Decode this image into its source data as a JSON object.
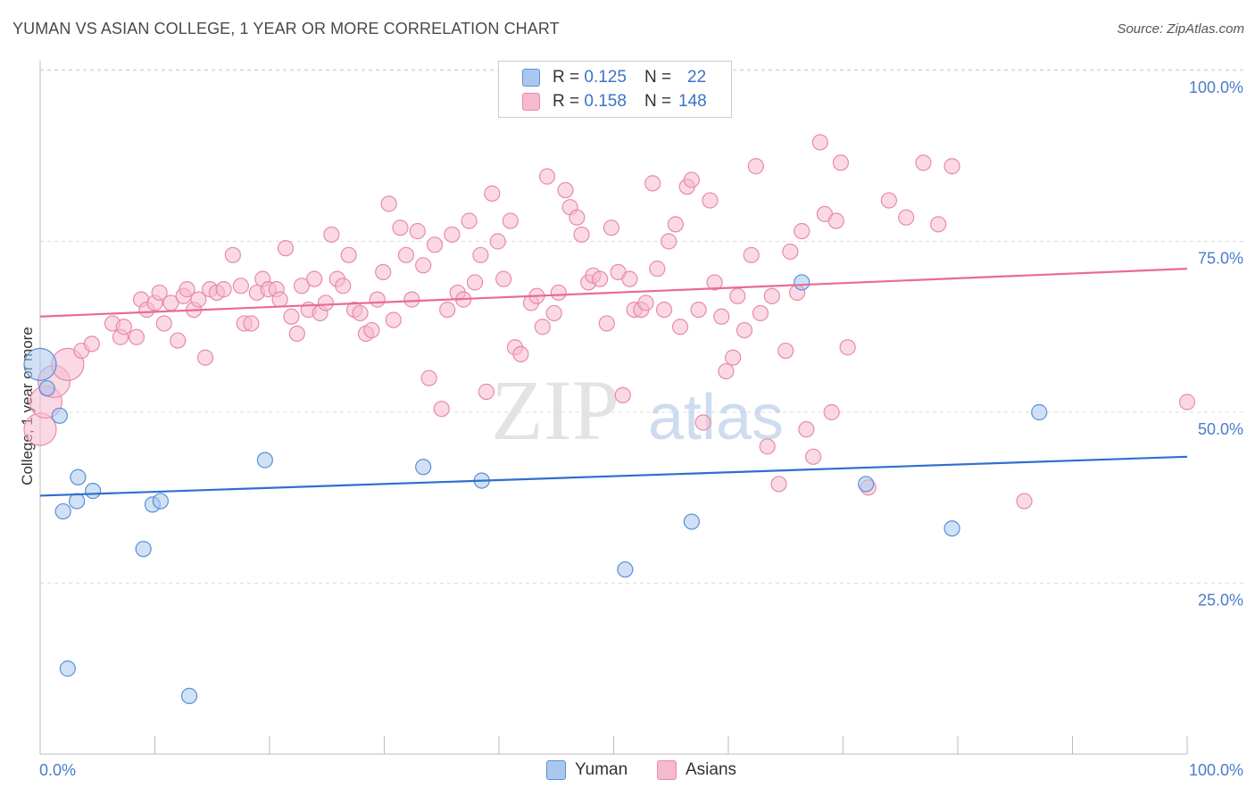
{
  "title": "YUMAN VS ASIAN COLLEGE, 1 YEAR OR MORE CORRELATION CHART",
  "source": "Source: ZipAtlas.com",
  "watermark_zip": "ZIP",
  "watermark_atlas": "atlas",
  "colors": {
    "yuman_fill": "#aac8ef",
    "yuman_stroke": "#5a8fd6",
    "yuman_line": "#2f6fcf",
    "asian_fill": "#f7b9cd",
    "asian_stroke": "#e88aaa",
    "asian_line": "#e86b97",
    "grid": "#dddddd",
    "axis_text": "#4a7cc9"
  },
  "legend": {
    "r_label": "R =",
    "n_label": "N =",
    "yuman": {
      "r": "0.125",
      "n": "22"
    },
    "asian": {
      "r": "0.158",
      "n": "148"
    }
  },
  "bottom_legend": {
    "yuman": "Yuman",
    "asian": "Asians"
  },
  "chart_data": {
    "type": "scatter",
    "ylabel": "College, 1 year or more",
    "xlim": [
      0,
      100
    ],
    "ylim": [
      0,
      105
    ],
    "x_tick_labels": [
      "0.0%",
      "100.0%"
    ],
    "y_ticks": [
      25,
      50,
      75,
      100
    ],
    "y_tick_labels": [
      "25.0%",
      "50.0%",
      "75.0%",
      "100.0%"
    ],
    "series": [
      {
        "name": "Yuman",
        "trend": {
          "y_at_0": 37.8,
          "y_at_100": 43.5
        },
        "points": [
          {
            "x": 0.0,
            "y": 57.0,
            "big": true
          },
          {
            "x": 0.6,
            "y": 53.5
          },
          {
            "x": 1.7,
            "y": 49.5
          },
          {
            "x": 2.0,
            "y": 35.5
          },
          {
            "x": 3.2,
            "y": 37.0
          },
          {
            "x": 3.3,
            "y": 40.5
          },
          {
            "x": 4.6,
            "y": 38.5
          },
          {
            "x": 9.0,
            "y": 30.0
          },
          {
            "x": 9.8,
            "y": 36.5
          },
          {
            "x": 10.5,
            "y": 37.0
          },
          {
            "x": 19.6,
            "y": 43.0
          },
          {
            "x": 33.4,
            "y": 42.0
          },
          {
            "x": 38.5,
            "y": 40.0
          },
          {
            "x": 51.0,
            "y": 27.0
          },
          {
            "x": 56.8,
            "y": 34.0
          },
          {
            "x": 66.4,
            "y": 69.0
          },
          {
            "x": 72.0,
            "y": 39.5
          },
          {
            "x": 79.5,
            "y": 33.0
          },
          {
            "x": 87.1,
            "y": 50.0
          },
          {
            "x": 2.4,
            "y": 12.5
          },
          {
            "x": 13.0,
            "y": 8.5
          }
        ]
      },
      {
        "name": "Asians",
        "trend": {
          "y_at_0": 64.0,
          "y_at_100": 71.0
        },
        "points": [
          {
            "x": 0.0,
            "y": 47.5,
            "big": true
          },
          {
            "x": 0.5,
            "y": 51.5,
            "big": true
          },
          {
            "x": 1.2,
            "y": 54.5,
            "big": true
          },
          {
            "x": 2.4,
            "y": 57.0,
            "big": true
          },
          {
            "x": 3.6,
            "y": 59.0
          },
          {
            "x": 4.5,
            "y": 60.0
          },
          {
            "x": 6.3,
            "y": 63.0
          },
          {
            "x": 7.0,
            "y": 61.0
          },
          {
            "x": 7.3,
            "y": 62.5
          },
          {
            "x": 8.4,
            "y": 61.0
          },
          {
            "x": 8.8,
            "y": 66.5
          },
          {
            "x": 9.3,
            "y": 65.0
          },
          {
            "x": 10.0,
            "y": 66.0
          },
          {
            "x": 10.4,
            "y": 67.5
          },
          {
            "x": 10.8,
            "y": 63.0
          },
          {
            "x": 11.4,
            "y": 66.0
          },
          {
            "x": 12.0,
            "y": 60.5
          },
          {
            "x": 12.5,
            "y": 67.0
          },
          {
            "x": 12.8,
            "y": 68.0
          },
          {
            "x": 13.4,
            "y": 65.0
          },
          {
            "x": 13.8,
            "y": 66.5
          },
          {
            "x": 14.4,
            "y": 58.0
          },
          {
            "x": 14.8,
            "y": 68.0
          },
          {
            "x": 15.4,
            "y": 67.5
          },
          {
            "x": 16.0,
            "y": 68.0
          },
          {
            "x": 16.8,
            "y": 73.0
          },
          {
            "x": 17.5,
            "y": 68.5
          },
          {
            "x": 17.8,
            "y": 63.0
          },
          {
            "x": 18.4,
            "y": 63.0
          },
          {
            "x": 18.9,
            "y": 67.5
          },
          {
            "x": 19.4,
            "y": 69.5
          },
          {
            "x": 19.9,
            "y": 68.0
          },
          {
            "x": 20.6,
            "y": 68.0
          },
          {
            "x": 20.9,
            "y": 66.5
          },
          {
            "x": 21.4,
            "y": 74.0
          },
          {
            "x": 21.9,
            "y": 64.0
          },
          {
            "x": 22.4,
            "y": 61.5
          },
          {
            "x": 22.8,
            "y": 68.5
          },
          {
            "x": 23.4,
            "y": 65.0
          },
          {
            "x": 23.9,
            "y": 69.5
          },
          {
            "x": 24.4,
            "y": 64.5
          },
          {
            "x": 24.9,
            "y": 66.0
          },
          {
            "x": 25.4,
            "y": 76.0
          },
          {
            "x": 25.9,
            "y": 69.5
          },
          {
            "x": 26.4,
            "y": 68.5
          },
          {
            "x": 26.9,
            "y": 73.0
          },
          {
            "x": 27.4,
            "y": 65.0
          },
          {
            "x": 27.9,
            "y": 64.5
          },
          {
            "x": 28.4,
            "y": 61.5
          },
          {
            "x": 28.9,
            "y": 62.0
          },
          {
            "x": 29.4,
            "y": 66.5
          },
          {
            "x": 29.9,
            "y": 70.5
          },
          {
            "x": 30.4,
            "y": 80.5
          },
          {
            "x": 30.8,
            "y": 63.5
          },
          {
            "x": 31.4,
            "y": 77.0
          },
          {
            "x": 31.9,
            "y": 73.0
          },
          {
            "x": 32.4,
            "y": 66.5
          },
          {
            "x": 32.9,
            "y": 76.5
          },
          {
            "x": 33.4,
            "y": 71.5
          },
          {
            "x": 33.9,
            "y": 55.0
          },
          {
            "x": 34.4,
            "y": 74.5
          },
          {
            "x": 35.0,
            "y": 50.5
          },
          {
            "x": 35.5,
            "y": 65.0
          },
          {
            "x": 35.9,
            "y": 76.0
          },
          {
            "x": 36.4,
            "y": 67.5
          },
          {
            "x": 36.9,
            "y": 66.5
          },
          {
            "x": 37.4,
            "y": 78.0
          },
          {
            "x": 37.9,
            "y": 69.0
          },
          {
            "x": 38.4,
            "y": 73.0
          },
          {
            "x": 38.9,
            "y": 53.0
          },
          {
            "x": 39.4,
            "y": 82.0
          },
          {
            "x": 39.9,
            "y": 75.0
          },
          {
            "x": 40.4,
            "y": 69.5
          },
          {
            "x": 41.0,
            "y": 78.0
          },
          {
            "x": 41.4,
            "y": 59.5
          },
          {
            "x": 41.9,
            "y": 58.5
          },
          {
            "x": 42.8,
            "y": 66.0
          },
          {
            "x": 43.3,
            "y": 67.0
          },
          {
            "x": 43.8,
            "y": 62.5
          },
          {
            "x": 44.2,
            "y": 84.5
          },
          {
            "x": 44.8,
            "y": 64.5
          },
          {
            "x": 45.2,
            "y": 67.5
          },
          {
            "x": 45.8,
            "y": 82.5
          },
          {
            "x": 46.2,
            "y": 80.0
          },
          {
            "x": 46.8,
            "y": 78.5
          },
          {
            "x": 47.2,
            "y": 76.0
          },
          {
            "x": 47.8,
            "y": 69.0
          },
          {
            "x": 48.2,
            "y": 70.0
          },
          {
            "x": 48.8,
            "y": 69.5
          },
          {
            "x": 49.4,
            "y": 63.0
          },
          {
            "x": 49.8,
            "y": 77.0
          },
          {
            "x": 50.4,
            "y": 70.5
          },
          {
            "x": 50.8,
            "y": 52.5
          },
          {
            "x": 51.4,
            "y": 69.5
          },
          {
            "x": 51.8,
            "y": 65.0
          },
          {
            "x": 52.4,
            "y": 65.0
          },
          {
            "x": 52.8,
            "y": 66.0
          },
          {
            "x": 53.4,
            "y": 83.5
          },
          {
            "x": 53.8,
            "y": 71.0
          },
          {
            "x": 54.4,
            "y": 65.0
          },
          {
            "x": 54.8,
            "y": 75.0
          },
          {
            "x": 55.4,
            "y": 77.5
          },
          {
            "x": 55.8,
            "y": 62.5
          },
          {
            "x": 56.4,
            "y": 83.0
          },
          {
            "x": 56.8,
            "y": 84.0
          },
          {
            "x": 57.4,
            "y": 65.0
          },
          {
            "x": 57.8,
            "y": 48.5
          },
          {
            "x": 58.4,
            "y": 81.0
          },
          {
            "x": 58.8,
            "y": 69.0
          },
          {
            "x": 59.4,
            "y": 64.0
          },
          {
            "x": 59.8,
            "y": 56.0
          },
          {
            "x": 60.4,
            "y": 58.0
          },
          {
            "x": 60.8,
            "y": 67.0
          },
          {
            "x": 61.4,
            "y": 62.0
          },
          {
            "x": 62.0,
            "y": 73.0
          },
          {
            "x": 62.4,
            "y": 86.0
          },
          {
            "x": 62.8,
            "y": 64.5
          },
          {
            "x": 63.4,
            "y": 45.0
          },
          {
            "x": 63.8,
            "y": 67.0
          },
          {
            "x": 64.4,
            "y": 39.5
          },
          {
            "x": 65.0,
            "y": 59.0
          },
          {
            "x": 65.4,
            "y": 73.5
          },
          {
            "x": 66.0,
            "y": 67.5
          },
          {
            "x": 66.4,
            "y": 76.5
          },
          {
            "x": 66.8,
            "y": 47.5
          },
          {
            "x": 67.4,
            "y": 43.5
          },
          {
            "x": 68.0,
            "y": 89.5
          },
          {
            "x": 68.4,
            "y": 79.0
          },
          {
            "x": 69.0,
            "y": 50.0
          },
          {
            "x": 69.4,
            "y": 78.0
          },
          {
            "x": 69.8,
            "y": 86.5
          },
          {
            "x": 70.4,
            "y": 59.5
          },
          {
            "x": 72.2,
            "y": 39.0
          },
          {
            "x": 74.0,
            "y": 81.0
          },
          {
            "x": 75.5,
            "y": 78.5
          },
          {
            "x": 77.0,
            "y": 86.5
          },
          {
            "x": 78.3,
            "y": 77.5
          },
          {
            "x": 79.5,
            "y": 86.0
          },
          {
            "x": 85.8,
            "y": 37.0
          },
          {
            "x": 100.0,
            "y": 51.5
          }
        ]
      }
    ]
  }
}
